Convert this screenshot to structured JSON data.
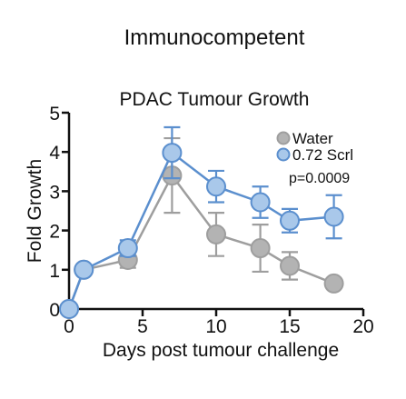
{
  "header": "Immunocompetent",
  "chart_data": {
    "type": "line",
    "title": "PDAC Tumour Growth",
    "xlabel": "Days post tumour challenge",
    "ylabel": "Fold Growth",
    "xlim": [
      0,
      20
    ],
    "ylim": [
      0,
      5
    ],
    "xticks": [
      0,
      5,
      10,
      15,
      20
    ],
    "yticks": [
      0,
      1,
      2,
      3,
      4,
      5
    ],
    "grid": false,
    "legend_position": "top-right",
    "annotation": "p=0.0009",
    "series": [
      {
        "name": "Water",
        "color": "#b3b3b3",
        "edge_color": "#9e9e9e",
        "x": [
          0,
          1,
          4,
          7,
          10,
          13,
          15,
          18
        ],
        "y": [
          0.0,
          1.0,
          1.25,
          3.4,
          1.9,
          1.55,
          1.1,
          0.65
        ],
        "error": [
          0,
          0,
          0.2,
          0.95,
          0.55,
          0.6,
          0.35,
          0
        ]
      },
      {
        "name": "0.72 Scrl",
        "color": "#a9c8ea",
        "edge_color": "#5b8fce",
        "x": [
          0,
          1,
          4,
          7,
          10,
          13,
          15,
          18
        ],
        "y": [
          0.0,
          1.0,
          1.55,
          3.98,
          3.12,
          2.72,
          2.25,
          2.35
        ],
        "error": [
          0,
          0,
          0.2,
          0.65,
          0.4,
          0.4,
          0.3,
          0.55
        ]
      }
    ]
  }
}
